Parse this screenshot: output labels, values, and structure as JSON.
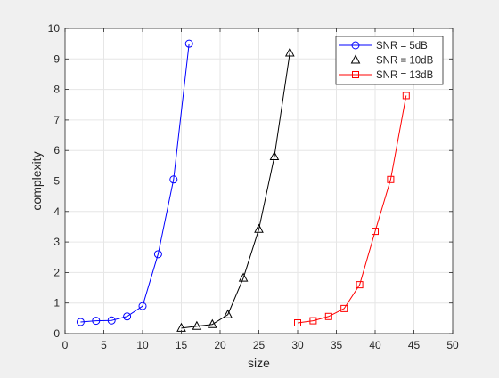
{
  "chart_data": {
    "type": "line",
    "xlabel": "size",
    "ylabel": "complexity",
    "xlim": [
      0,
      50
    ],
    "ylim": [
      0,
      10
    ],
    "xticks": [
      0,
      5,
      10,
      15,
      20,
      25,
      30,
      35,
      40,
      45,
      50
    ],
    "yticks": [
      0,
      1,
      2,
      3,
      4,
      5,
      6,
      7,
      8,
      9,
      10
    ],
    "grid": true,
    "legend_position": "top-right",
    "series": [
      {
        "name": "SNR = 5dB",
        "color": "#0000ff",
        "marker": "circle",
        "x": [
          2,
          4,
          6,
          8,
          10,
          12,
          14,
          16
        ],
        "y": [
          0.38,
          0.42,
          0.43,
          0.56,
          0.9,
          2.6,
          5.05,
          9.5
        ]
      },
      {
        "name": "SNR = 10dB",
        "color": "#000000",
        "marker": "triangle",
        "x": [
          15,
          17,
          19,
          21,
          23,
          25,
          27,
          29
        ],
        "y": [
          0.18,
          0.24,
          0.3,
          0.62,
          1.82,
          3.42,
          5.8,
          9.2
        ]
      },
      {
        "name": "SNR = 13dB",
        "color": "#ff0000",
        "marker": "square",
        "x": [
          30,
          32,
          34,
          36,
          38,
          40,
          42,
          44
        ],
        "y": [
          0.35,
          0.42,
          0.56,
          0.82,
          1.6,
          3.35,
          5.05,
          7.8
        ]
      }
    ]
  }
}
